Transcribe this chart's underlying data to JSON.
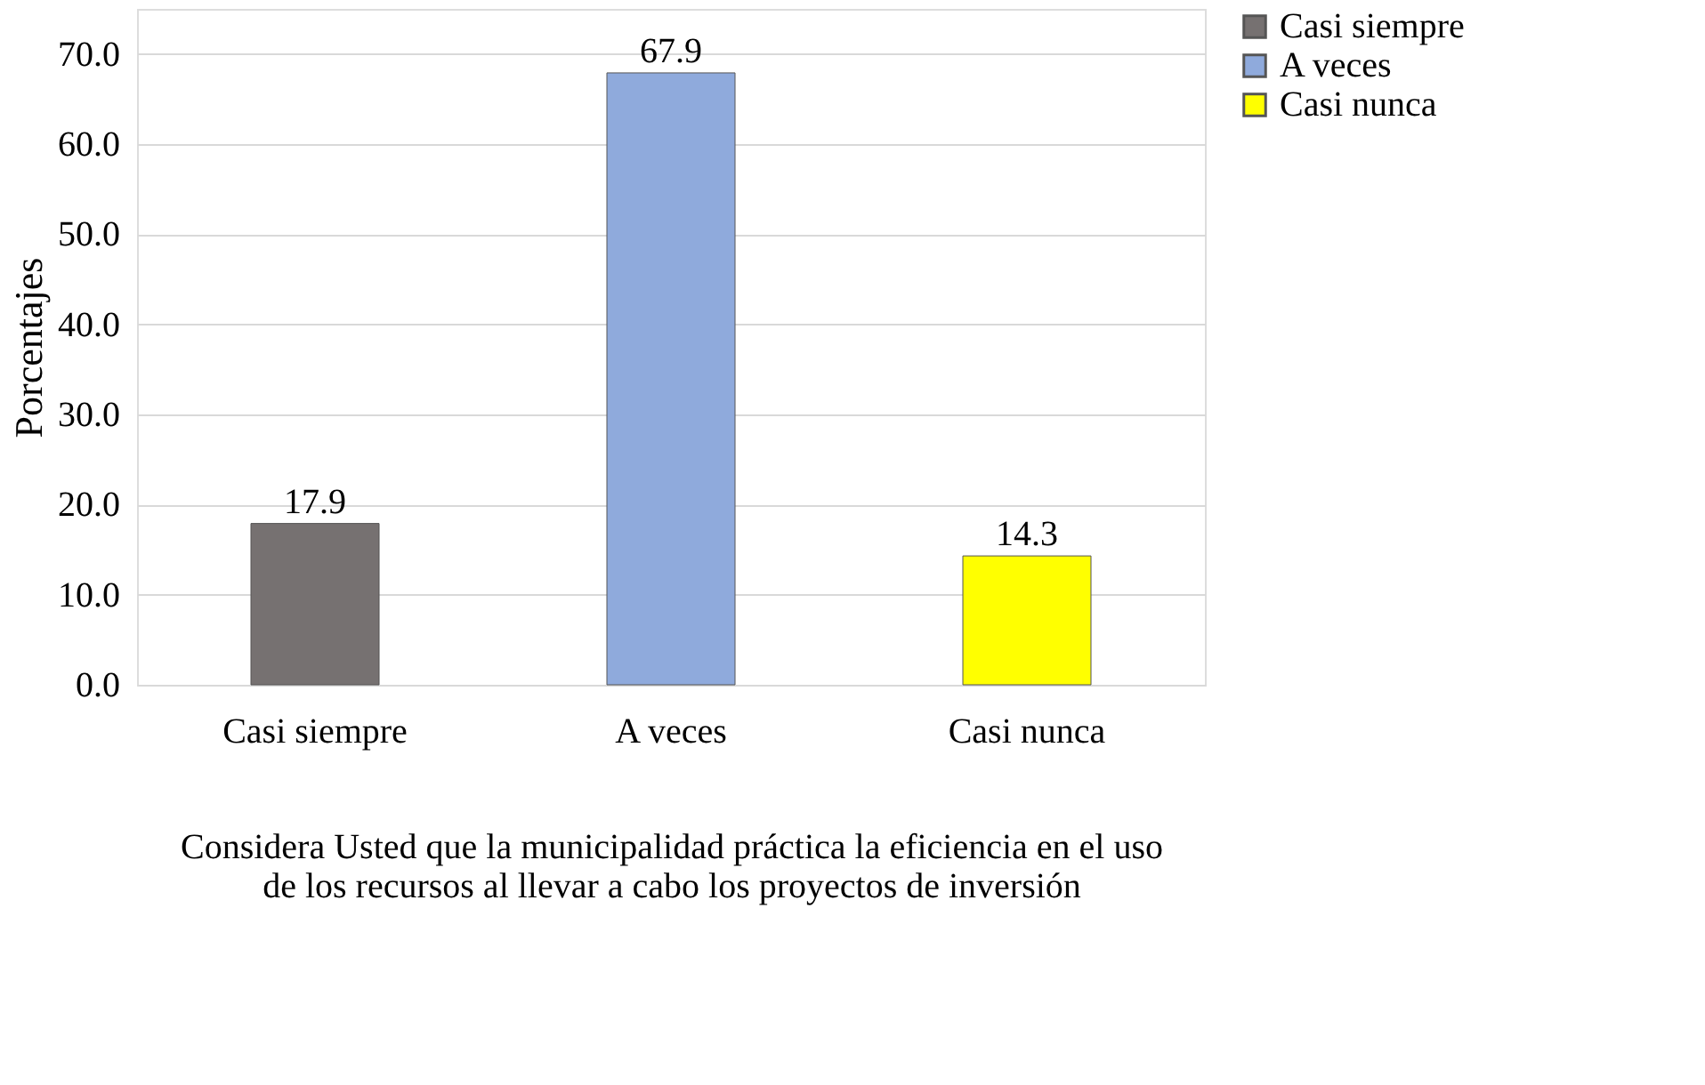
{
  "chart_data": {
    "type": "bar",
    "categories": [
      "Casi siempre",
      "A veces",
      "Casi nunca"
    ],
    "series": [
      {
        "name": "Casi siempre",
        "color": "#767171",
        "values": [
          17.9,
          null,
          null
        ]
      },
      {
        "name": "A veces",
        "color": "#8faadc",
        "values": [
          null,
          67.9,
          null
        ]
      },
      {
        "name": "Casi nunca",
        "color": "#ffff00",
        "values": [
          null,
          null,
          14.3
        ]
      }
    ],
    "ylabel": "Porcentajes",
    "xlabel": "Considera Usted que la municipalidad práctica la eficiencia en el uso\nde los recursos al llevar a cabo los proyectos de inversión",
    "ylim": [
      0,
      75
    ],
    "yticks": [
      {
        "value": 0,
        "label": "0.0"
      },
      {
        "value": 10,
        "label": "10.0"
      },
      {
        "value": 20,
        "label": "20.0"
      },
      {
        "value": 30,
        "label": "30.0"
      },
      {
        "value": 40,
        "label": "40.0"
      },
      {
        "value": 50,
        "label": "50.0"
      },
      {
        "value": 60,
        "label": "60.0"
      },
      {
        "value": 70,
        "label": "70.0"
      }
    ],
    "grid": "y",
    "legend": "right",
    "data_labels": true
  }
}
